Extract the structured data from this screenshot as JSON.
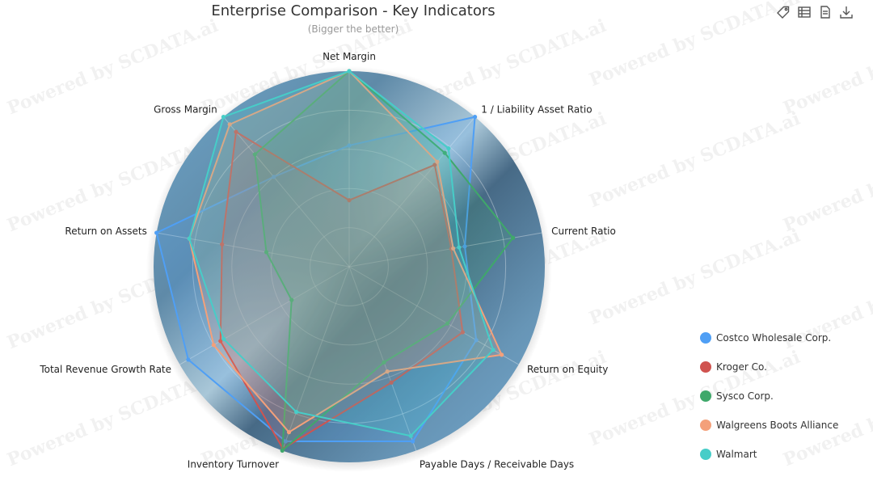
{
  "title": "Enterprise Comparison - Key Indicators",
  "subtitle": "(Bigger the better)",
  "watermark_text": "Powered by SCDATA.ai",
  "toolbox": [
    "tag-icon",
    "data-view-icon",
    "document-icon",
    "download-icon"
  ],
  "chart_data": {
    "type": "radar",
    "indicators": [
      "Net Margin",
      "1 / Liability Asset Ratio",
      "Current Ratio",
      "Return on Equity",
      "Payable Days / Receivable Days",
      "Inventory Turnover",
      "Total Revenue Growth Rate",
      "Return on Assets",
      "Gross Margin"
    ],
    "max": 1.0,
    "series": [
      {
        "name": "Costco Wholesale Corp.",
        "color": "#4f9ff5",
        "values": [
          0.62,
          1.0,
          0.6,
          0.75,
          0.95,
          0.95,
          0.95,
          1.0,
          0.6
        ]
      },
      {
        "name": "Kroger Co.",
        "color": "#d0534f",
        "values": [
          0.34,
          0.68,
          0.53,
          0.67,
          0.63,
          0.99,
          0.76,
          0.66,
          0.9
        ]
      },
      {
        "name": "Sysco Corp.",
        "color": "#3fa86a",
        "values": [
          1.0,
          0.76,
          0.85,
          0.58,
          0.52,
          1.0,
          0.34,
          0.43,
          0.75
        ]
      },
      {
        "name": "Walgreens Boots Alliance",
        "color": "#f4a07a",
        "values": [
          1.0,
          0.7,
          0.54,
          0.9,
          0.57,
          0.9,
          0.8,
          0.83,
          0.95
        ]
      },
      {
        "name": "Walmart",
        "color": "#47cdc8",
        "values": [
          1.0,
          0.79,
          0.57,
          0.85,
          0.92,
          0.79,
          0.74,
          0.83,
          1.0
        ]
      }
    ]
  }
}
